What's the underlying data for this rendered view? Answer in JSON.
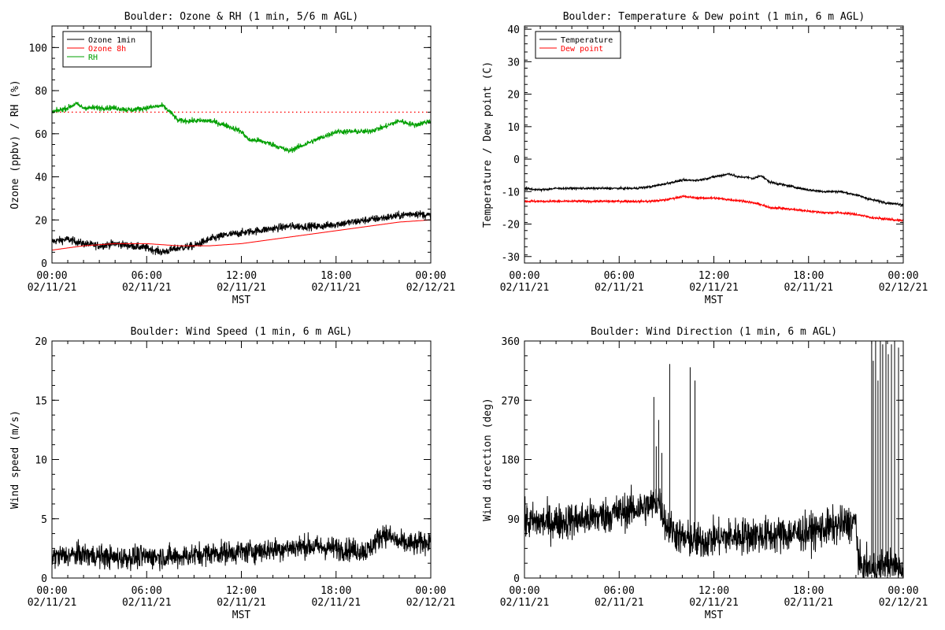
{
  "colors": {
    "black": "#000000",
    "red": "#ff0000",
    "green": "#00a000"
  },
  "chart_data": [
    {
      "type": "line",
      "title": "Boulder: Ozone & RH (1 min, 5/6 m AGL)",
      "xlabel": "MST",
      "ylabel": "Ozone (ppbv) / RH (%)",
      "x_domain_hours": [
        0,
        24
      ],
      "x_tick_hours": [
        0,
        6,
        12,
        18,
        24
      ],
      "x_tick_labels": [
        [
          "00:00",
          "02/11/21"
        ],
        [
          "06:00",
          "02/11/21"
        ],
        [
          "12:00",
          "02/11/21"
        ],
        [
          "18:00",
          "02/11/21"
        ],
        [
          "00:00",
          "02/12/21"
        ]
      ],
      "ylim": [
        0,
        110
      ],
      "y_ticks": [
        0,
        20,
        40,
        60,
        80,
        100
      ],
      "y_tick_labels": [
        "0",
        "20",
        "40",
        "60",
        "80",
        "100"
      ],
      "legend": "top-left",
      "reference_line": {
        "y": 70,
        "color": "#ff0000",
        "style": "dotted"
      },
      "series": [
        {
          "name": "Ozone 1min",
          "color": "#000000",
          "noise": 1.3,
          "spikes": null,
          "x": [
            0,
            1,
            2,
            3,
            4,
            5,
            6,
            7,
            8,
            9,
            10,
            11,
            12,
            13,
            14,
            15,
            16,
            17,
            18,
            19,
            20,
            21,
            22,
            23,
            24
          ],
          "y": [
            10,
            11,
            9,
            8,
            9,
            8,
            7,
            5,
            7,
            8,
            11,
            13,
            14,
            15,
            16,
            17,
            17,
            17,
            18,
            19,
            20,
            21,
            22,
            23,
            22
          ]
        },
        {
          "name": "Ozone 8h",
          "color": "#ff0000",
          "noise": 0,
          "spikes": null,
          "x": [
            0,
            2,
            4,
            6,
            8,
            10,
            12,
            14,
            16,
            18,
            20,
            22,
            24
          ],
          "y": [
            6,
            8,
            9,
            9,
            8,
            8,
            9,
            11,
            13,
            15,
            17,
            19,
            20
          ]
        },
        {
          "name": "RH",
          "color": "#00a000",
          "noise": 0.9,
          "spikes": null,
          "x": [
            0,
            1,
            1.5,
            2,
            3,
            4,
            5,
            6,
            7,
            7.5,
            8,
            9,
            10,
            11,
            12,
            12.5,
            13,
            14,
            15,
            16,
            17,
            18,
            19,
            20,
            21,
            22,
            23,
            24
          ],
          "y": [
            70,
            72,
            74,
            72,
            72,
            72,
            71,
            72,
            73,
            70,
            66,
            66,
            66,
            64,
            61,
            57,
            57,
            55,
            52,
            55,
            58,
            61,
            61,
            61,
            63,
            66,
            64,
            66
          ]
        }
      ]
    },
    {
      "type": "line",
      "title": "Boulder: Temperature & Dew point (1 min, 6 m AGL)",
      "xlabel": "MST",
      "ylabel": "Temperature / Dew point (C)",
      "x_domain_hours": [
        0,
        24
      ],
      "x_tick_hours": [
        0,
        6,
        12,
        18,
        24
      ],
      "x_tick_labels": [
        [
          "00:00",
          "02/11/21"
        ],
        [
          "06:00",
          "02/11/21"
        ],
        [
          "12:00",
          "02/11/21"
        ],
        [
          "18:00",
          "02/11/21"
        ],
        [
          "00:00",
          "02/12/21"
        ]
      ],
      "ylim": [
        -32,
        41
      ],
      "y_ticks": [
        -30,
        -20,
        -10,
        0,
        10,
        20,
        30,
        40
      ],
      "y_tick_labels": [
        "-30",
        "-20",
        "-10",
        "0",
        "10",
        "20",
        "30",
        "40"
      ],
      "legend": "top-left",
      "reference_line": null,
      "series": [
        {
          "name": "Temperature",
          "color": "#000000",
          "noise": 0.25,
          "spikes": null,
          "x": [
            0,
            1,
            2,
            3,
            4,
            5,
            6,
            7,
            8,
            9,
            10,
            11,
            12,
            12.5,
            13,
            13.5,
            14,
            14.5,
            15,
            15.5,
            16,
            17,
            18,
            19,
            20,
            21,
            22,
            23,
            24
          ],
          "y": [
            -9,
            -9.5,
            -9,
            -9,
            -9,
            -9,
            -9,
            -9,
            -8.5,
            -7.5,
            -6.5,
            -6.5,
            -5.5,
            -5,
            -4.5,
            -5.5,
            -5.5,
            -6,
            -5,
            -7,
            -7.5,
            -8.5,
            -9.5,
            -10,
            -10,
            -11,
            -12.5,
            -13.5,
            -14
          ]
        },
        {
          "name": "Dew point",
          "color": "#ff0000",
          "noise": 0.25,
          "spikes": null,
          "x": [
            0,
            2,
            4,
            6,
            8,
            9,
            10,
            11,
            12,
            13,
            14,
            15,
            15.5,
            16,
            17,
            18,
            19,
            20,
            21,
            22,
            23,
            24
          ],
          "y": [
            -13,
            -13,
            -13,
            -13,
            -13,
            -12.5,
            -11.5,
            -12,
            -12,
            -12.5,
            -13,
            -14,
            -15,
            -15,
            -15.5,
            -16,
            -16.5,
            -16.5,
            -17,
            -18,
            -18.5,
            -19
          ]
        }
      ]
    },
    {
      "type": "line",
      "title": "Boulder: Wind Speed (1 min, 6 m AGL)",
      "xlabel": "MST",
      "ylabel": "Wind speed (m/s)",
      "x_domain_hours": [
        0,
        24
      ],
      "x_tick_hours": [
        0,
        6,
        12,
        18,
        24
      ],
      "x_tick_labels": [
        [
          "00:00",
          "02/11/21"
        ],
        [
          "06:00",
          "02/11/21"
        ],
        [
          "12:00",
          "02/11/21"
        ],
        [
          "18:00",
          "02/11/21"
        ],
        [
          "00:00",
          "02/12/21"
        ]
      ],
      "ylim": [
        0,
        20
      ],
      "y_ticks": [
        0,
        5,
        10,
        15,
        20
      ],
      "y_tick_labels": [
        "0",
        "5",
        "10",
        "15",
        "20"
      ],
      "legend": null,
      "reference_line": null,
      "series": [
        {
          "name": "",
          "color": "#000000",
          "noise": 0.7,
          "spikes": null,
          "x": [
            0,
            2,
            4,
            6,
            8,
            10,
            12,
            14,
            16,
            18,
            20,
            21,
            22,
            23,
            24
          ],
          "y": [
            1.8,
            2.0,
            1.7,
            1.8,
            1.8,
            2.1,
            2.2,
            2.4,
            2.7,
            2.5,
            2.3,
            3.8,
            3.0,
            2.8,
            3.2
          ]
        }
      ]
    },
    {
      "type": "line",
      "title": "Boulder: Wind Direction (1 min, 6 m AGL)",
      "xlabel": "MST",
      "ylabel": "Wind direction (deg)",
      "x_domain_hours": [
        0,
        24
      ],
      "x_tick_hours": [
        0,
        6,
        12,
        18,
        24
      ],
      "x_tick_labels": [
        [
          "00:00",
          "02/11/21"
        ],
        [
          "06:00",
          "02/11/21"
        ],
        [
          "12:00",
          "02/11/21"
        ],
        [
          "18:00",
          "02/11/21"
        ],
        [
          "00:00",
          "02/12/21"
        ]
      ],
      "ylim": [
        0,
        360
      ],
      "y_ticks": [
        0,
        90,
        180,
        270,
        360
      ],
      "y_tick_labels": [
        "0",
        "90",
        "180",
        "270",
        "360"
      ],
      "legend": null,
      "reference_line": null,
      "series": [
        {
          "name": "",
          "color": "#000000",
          "noise": 20,
          "x": [
            0,
            2,
            4,
            6,
            8,
            8.5,
            9,
            10,
            11,
            12,
            14,
            16,
            18,
            20,
            21,
            21.2,
            22,
            23,
            24
          ],
          "y": [
            85,
            85,
            90,
            100,
            110,
            120,
            80,
            60,
            55,
            60,
            65,
            65,
            70,
            80,
            85,
            20,
            10,
            20,
            15
          ],
          "spikes": [
            [
              8.2,
              275
            ],
            [
              8.35,
              200
            ],
            [
              8.5,
              240
            ],
            [
              8.7,
              190
            ],
            [
              9.2,
              325
            ],
            [
              10.5,
              320
            ],
            [
              10.8,
              300
            ],
            [
              22.0,
              360
            ],
            [
              22.1,
              330
            ],
            [
              22.25,
              360
            ],
            [
              22.4,
              300
            ],
            [
              22.55,
              360
            ],
            [
              22.7,
              355
            ],
            [
              22.9,
              360
            ],
            [
              23.05,
              340
            ],
            [
              23.25,
              355
            ],
            [
              23.45,
              360
            ],
            [
              23.7,
              350
            ]
          ]
        }
      ]
    }
  ]
}
